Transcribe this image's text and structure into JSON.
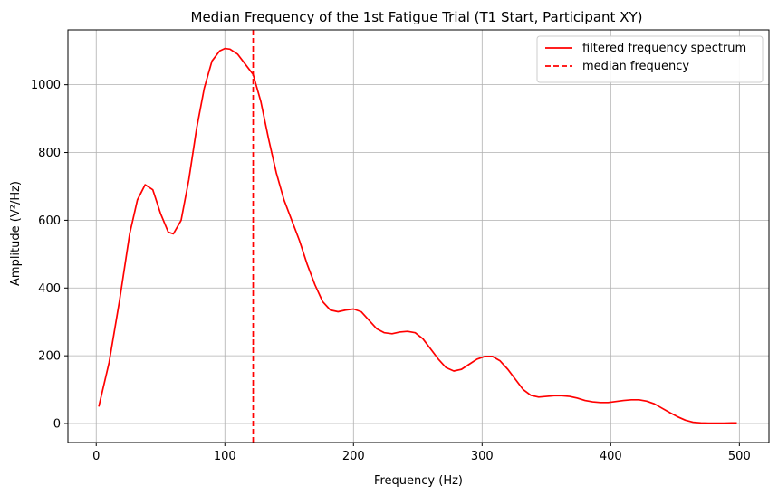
{
  "chart_data": {
    "type": "line",
    "title": "Median Frequency of the 1st Fatigue Trial (T1 Start, Participant XY)",
    "xlabel": "Frequency (Hz)",
    "ylabel": "Amplitude (V²/Hz)",
    "xlim": [
      -22,
      523
    ],
    "ylim": [
      -56,
      1162
    ],
    "xticks": [
      0,
      100,
      200,
      300,
      400,
      500
    ],
    "yticks": [
      0,
      200,
      400,
      600,
      800,
      1000
    ],
    "xtick_labels": [
      "0",
      "100",
      "200",
      "300",
      "400",
      "500"
    ],
    "ytick_labels": [
      "0",
      "200",
      "400",
      "600",
      "800",
      "1000"
    ],
    "grid": true,
    "legend_position": "upper right",
    "series": [
      {
        "name": "filtered frequency spectrum",
        "color": "#ff0000",
        "style": "solid",
        "x": [
          2,
          10,
          18,
          26,
          32,
          38,
          44,
          50,
          56,
          60,
          66,
          72,
          78,
          84,
          90,
          96,
          100,
          104,
          110,
          116,
          122,
          128,
          134,
          140,
          146,
          152,
          158,
          164,
          170,
          176,
          182,
          188,
          194,
          200,
          206,
          212,
          218,
          224,
          230,
          236,
          242,
          248,
          254,
          260,
          266,
          272,
          278,
          284,
          290,
          296,
          302,
          308,
          314,
          320,
          326,
          332,
          338,
          344,
          350,
          356,
          362,
          368,
          374,
          380,
          386,
          392,
          398,
          404,
          410,
          416,
          422,
          428,
          434,
          440,
          446,
          452,
          458,
          464,
          470,
          476,
          482,
          488,
          494,
          498
        ],
        "y": [
          50,
          180,
          360,
          560,
          660,
          705,
          690,
          620,
          565,
          560,
          600,
          720,
          870,
          990,
          1070,
          1100,
          1107,
          1105,
          1090,
          1060,
          1030,
          950,
          840,
          740,
          660,
          600,
          540,
          470,
          410,
          360,
          335,
          330,
          335,
          338,
          330,
          305,
          280,
          268,
          265,
          270,
          272,
          268,
          250,
          220,
          190,
          165,
          155,
          160,
          175,
          190,
          198,
          198,
          185,
          160,
          130,
          100,
          83,
          78,
          80,
          82,
          82,
          80,
          75,
          68,
          64,
          62,
          62,
          65,
          68,
          70,
          70,
          66,
          58,
          45,
          32,
          20,
          10,
          4,
          2,
          1,
          1,
          1,
          2,
          2
        ]
      },
      {
        "name": "median frequency",
        "color": "#ff0000",
        "style": "dashed",
        "vertical_line_x": 122
      }
    ]
  }
}
